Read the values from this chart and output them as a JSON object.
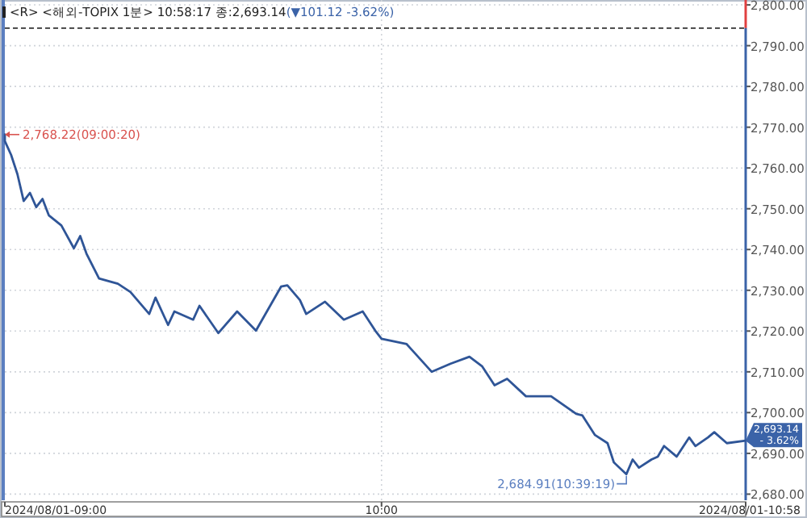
{
  "chart_data": {
    "type": "line",
    "title": "<R> <해외-TOPIX 1분> 10:58:17 종:2,693.14",
    "subtitle": "(▼101.12 -3.62%)",
    "x": [
      "2024-08-01T09:00",
      "2024-08-01T09:00",
      "2024-08-01T09:01",
      "2024-08-01T09:02",
      "2024-08-01T09:03",
      "2024-08-01T09:04",
      "2024-08-01T09:05",
      "2024-08-01T09:06",
      "2024-08-01T09:07",
      "2024-08-01T09:09",
      "2024-08-01T09:11",
      "2024-08-01T09:12",
      "2024-08-01T09:13",
      "2024-08-01T09:15",
      "2024-08-01T09:18",
      "2024-08-01T09:20",
      "2024-08-01T09:23",
      "2024-08-01T09:24",
      "2024-08-01T09:26",
      "2024-08-01T09:27",
      "2024-08-01T09:30",
      "2024-08-01T09:31",
      "2024-08-01T09:34",
      "2024-08-01T09:37",
      "2024-08-01T09:40",
      "2024-08-01T09:44",
      "2024-08-01T09:45",
      "2024-08-01T09:47",
      "2024-08-01T09:48",
      "2024-08-01T09:51",
      "2024-08-01T09:54",
      "2024-08-01T09:57",
      "2024-08-01T09:59",
      "2024-08-01T10:00",
      "2024-08-01T10:04",
      "2024-08-01T10:08",
      "2024-08-01T10:11",
      "2024-08-01T10:14",
      "2024-08-01T10:16",
      "2024-08-01T10:18",
      "2024-08-01T10:20",
      "2024-08-01T10:23",
      "2024-08-01T10:27",
      "2024-08-01T10:31",
      "2024-08-01T10:32",
      "2024-08-01T10:34",
      "2024-08-01T10:36",
      "2024-08-01T10:37",
      "2024-08-01T10:39",
      "2024-08-01T10:40",
      "2024-08-01T10:41",
      "2024-08-01T10:43",
      "2024-08-01T10:44",
      "2024-08-01T10:45",
      "2024-08-01T10:47",
      "2024-08-01T10:49",
      "2024-08-01T10:50",
      "2024-08-01T10:52",
      "2024-08-01T10:53",
      "2024-08-01T10:55",
      "2024-08-01T10:58"
    ],
    "series": [
      {
        "color": "#2f5597",
        "values": [
          2768.2,
          2766.6,
          2763.2,
          2758.5,
          2751.9,
          2753.9,
          2750.4,
          2752.4,
          2748.4,
          2745.9,
          2740.3,
          2743.3,
          2739.0,
          2732.9,
          2731.6,
          2729.6,
          2724.2,
          2728.2,
          2721.5,
          2724.8,
          2722.8,
          2726.2,
          2719.5,
          2724.8,
          2720.1,
          2730.9,
          2731.2,
          2727.6,
          2724.2,
          2727.2,
          2722.8,
          2724.8,
          2720.1,
          2718.1,
          2716.8,
          2710.0,
          2712.0,
          2713.7,
          2711.4,
          2706.7,
          2708.3,
          2704.0,
          2704.0,
          2699.7,
          2699.3,
          2694.5,
          2692.5,
          2687.8,
          2684.9,
          2688.5,
          2686.5,
          2688.5,
          2689.2,
          2691.8,
          2689.2,
          2693.9,
          2691.8,
          2693.9,
          2695.2,
          2692.5,
          2693.1
        ]
      }
    ],
    "xlim": [
      "2024-08-01T09:00",
      "2024-08-01T10:58"
    ],
    "ylim": [
      2678.5,
      2801.2
    ],
    "xticks": [
      {
        "value": "2024-08-01T09:00",
        "label": "2024/08/01-09:00"
      },
      {
        "value": "2024-08-01T10:00",
        "label": "10:00"
      },
      {
        "value": "2024-08-01T10:58",
        "label": "2024/08/01-10:58"
      }
    ],
    "yticks": [
      {
        "value": 2680,
        "label": "2,680.00"
      },
      {
        "value": 2690,
        "label": "2,690.00"
      },
      {
        "value": 2700,
        "label": "2,700.00"
      },
      {
        "value": 2710,
        "label": "2,710.00"
      },
      {
        "value": 2720,
        "label": "2,720.00"
      },
      {
        "value": 2730,
        "label": "2,730.00"
      },
      {
        "value": 2740,
        "label": "2,740.00"
      },
      {
        "value": 2750,
        "label": "2,750.00"
      },
      {
        "value": 2760,
        "label": "2,760.00"
      },
      {
        "value": 2770,
        "label": "2,770.00"
      },
      {
        "value": 2780,
        "label": "2,780.00"
      },
      {
        "value": 2790,
        "label": "2,790.00"
      },
      {
        "value": 2800,
        "label": "2,800.00"
      }
    ],
    "ref_lines": [
      {
        "axis": "y",
        "value": 2794.3,
        "color": "#333333",
        "line_style": "dashed"
      }
    ],
    "annotations": [
      {
        "text": "2,768.22(09:00:20)",
        "x": "2024-08-01T09:00",
        "y": 2768.2
      },
      {
        "text": "2,684.91(10:39:19)",
        "x": "2024-08-01T10:39",
        "y": 2684.9
      },
      {
        "text": "2,693.14",
        "x": "2024-08-01T10:58",
        "y": 2693.1
      },
      {
        "text": "- 3.62%",
        "x": "2024-08-01T10:58",
        "y": 2693.1
      }
    ],
    "grid": true,
    "marker": "none",
    "line_style": "solid"
  }
}
